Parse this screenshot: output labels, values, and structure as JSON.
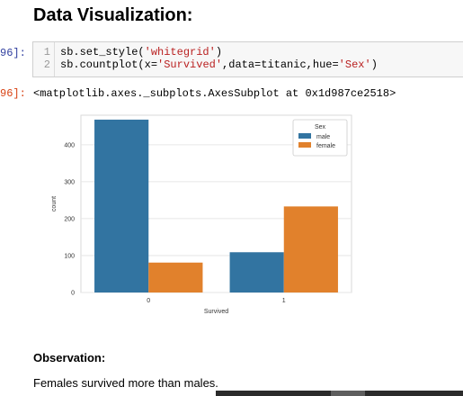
{
  "heading": "Data Visualization:",
  "cell": {
    "in_prompt": "96]:",
    "out_prompt": "96]:",
    "line_numbers": [
      "1",
      "2"
    ],
    "line1": {
      "a": "sb.set_style(",
      "b": "'whitegrid'",
      "c": ")"
    },
    "line2": {
      "a": "sb.countplot(x=",
      "b": "'Survived'",
      "c": ",data=titanic,hue=",
      "d": "'Sex'",
      "e": ")"
    },
    "output": "<matplotlib.axes._subplots.AxesSubplot at 0x1d987ce2518>"
  },
  "chart_data": {
    "type": "bar",
    "categories": [
      "0",
      "1"
    ],
    "series": [
      {
        "name": "male",
        "values": [
          468,
          109
        ],
        "color": "#3274a1"
      },
      {
        "name": "female",
        "values": [
          81,
          233
        ],
        "color": "#e1812c"
      }
    ],
    "xlabel": "Survived",
    "ylabel": "count",
    "ylim": [
      0,
      480
    ],
    "yticks": [
      0,
      100,
      200,
      300,
      400
    ],
    "grid": true,
    "legend": {
      "title": "Sex",
      "placement": "top-right"
    }
  },
  "observation": {
    "title": "Observation:",
    "text": "Females survived more than males."
  }
}
